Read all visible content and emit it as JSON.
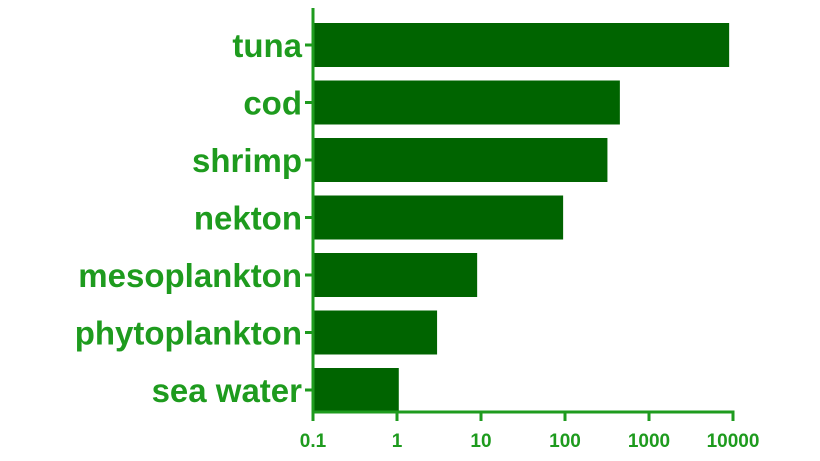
{
  "chart_data": {
    "type": "bar",
    "orientation": "horizontal",
    "x_scale": "log",
    "xlim": [
      0.1,
      10000
    ],
    "x_ticks": [
      0.1,
      1,
      10,
      100,
      1000,
      10000
    ],
    "x_tick_labels": [
      "0.1",
      "1",
      "10",
      "100",
      "1000",
      "10000"
    ],
    "categories": [
      "tuna",
      "cod",
      "shrimp",
      "nekton",
      "mesoplankton",
      "phytoplankton",
      "sea water"
    ],
    "values": [
      9000,
      450,
      320,
      95,
      9,
      3,
      1.05
    ],
    "title": "",
    "xlabel": "",
    "ylabel": "",
    "grid": false,
    "colors": {
      "bar": "#006400",
      "text": "#1e9b1e",
      "axis": "#1e9b1e"
    }
  }
}
